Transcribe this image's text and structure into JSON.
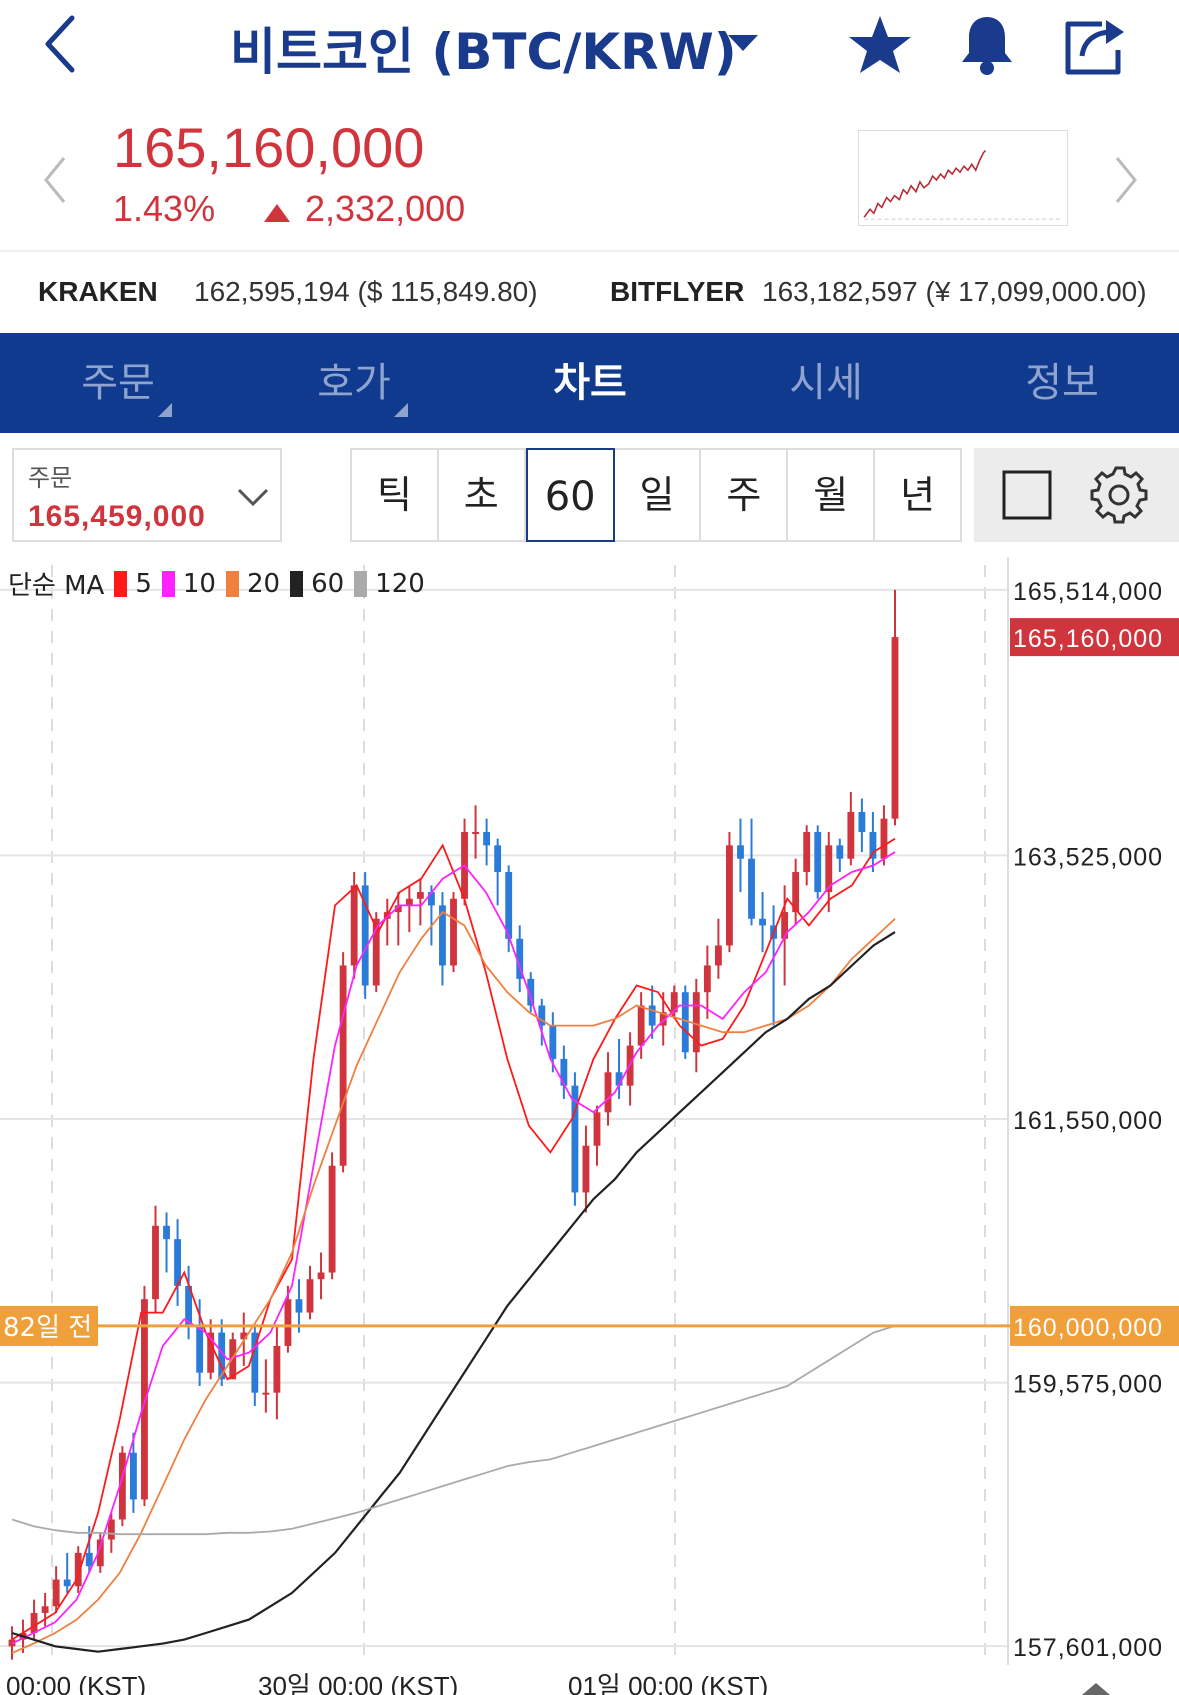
{
  "header": {
    "title": "비트코인 (BTC/KRW)"
  },
  "price": {
    "current": "165,160,000",
    "change_pct": "1.43%",
    "change_amt": "2,332,000"
  },
  "exchanges": [
    {
      "name": "KRAKEN",
      "value": "162,595,194 ($ 115,849.80)"
    },
    {
      "name": "BITFLYER",
      "value": "163,182,597 (¥ 17,099,000.00)"
    }
  ],
  "tabs": [
    {
      "label": "주문",
      "active": false,
      "has_submenu": true
    },
    {
      "label": "호가",
      "active": false,
      "has_submenu": true
    },
    {
      "label": "차트",
      "active": true,
      "has_submenu": false
    },
    {
      "label": "시세",
      "active": false,
      "has_submenu": false
    },
    {
      "label": "정보",
      "active": false,
      "has_submenu": false
    }
  ],
  "order": {
    "label": "주문",
    "value": "165,459,000"
  },
  "periods": [
    {
      "label": "틱",
      "active": false
    },
    {
      "label": "초",
      "active": false
    },
    {
      "label": "60분",
      "active": true
    },
    {
      "label": "일",
      "active": false
    },
    {
      "label": "주",
      "active": false
    },
    {
      "label": "월",
      "active": false
    },
    {
      "label": "년",
      "active": false
    }
  ],
  "colors": {
    "brand": "#1a3a8c",
    "tab_bar": "#0f3a8d",
    "up": "#d0343d",
    "down": "#2b7bd8",
    "marker": "#f0a03a"
  },
  "chart_data": {
    "type": "candlestick",
    "interval": "60분",
    "legend": {
      "label": "단순 MA",
      "items": [
        {
          "name": "5",
          "color": "#ff1a1a"
        },
        {
          "name": "10",
          "color": "#ff22ff"
        },
        {
          "name": "20",
          "color": "#f08040"
        },
        {
          "name": "60",
          "color": "#222222"
        },
        {
          "name": "120",
          "color": "#aaaaaa"
        }
      ]
    },
    "y_axis": {
      "ticks": [
        "165,514,000",
        "163,525,000",
        "161,550,000",
        "159,575,000",
        "157,601,000"
      ],
      "tick_values": [
        165514000,
        163525000,
        161550000,
        159575000,
        157601000
      ],
      "range": [
        157460000,
        165700000
      ]
    },
    "current_price_label": "165,160,000",
    "current_price": 165160000,
    "horizontal_line": {
      "label": "82일 전",
      "price_label": "160,000,000",
      "value": 160000000
    },
    "x_axis": {
      "labels": [
        "00:00 (KST)",
        "30일 00:00 (KST)",
        "01일 00:00 (KST)"
      ]
    },
    "candles": [
      [
        157600000,
        157750000,
        157500000,
        157650000
      ],
      [
        157650000,
        157800000,
        157550000,
        157700000
      ],
      [
        157700000,
        157950000,
        157650000,
        157850000
      ],
      [
        157850000,
        158000000,
        157750000,
        157900000
      ],
      [
        157900000,
        158200000,
        157850000,
        158100000
      ],
      [
        158100000,
        158300000,
        158000000,
        158050000
      ],
      [
        158050000,
        158350000,
        158000000,
        158300000
      ],
      [
        158300000,
        158500000,
        158150000,
        158200000
      ],
      [
        158200000,
        158450000,
        158150000,
        158400000
      ],
      [
        158400000,
        158600000,
        158300000,
        158550000
      ],
      [
        158550000,
        159100000,
        158500000,
        159050000
      ],
      [
        159050000,
        159200000,
        158600000,
        158700000
      ],
      [
        158700000,
        160300000,
        158650000,
        160200000
      ],
      [
        160200000,
        160900000,
        160100000,
        160750000
      ],
      [
        160750000,
        160850000,
        160400000,
        160650000
      ],
      [
        160650000,
        160800000,
        160150000,
        160300000
      ],
      [
        160300000,
        160450000,
        159900000,
        160000000
      ],
      [
        160000000,
        160200000,
        159550000,
        159650000
      ],
      [
        159650000,
        160050000,
        159600000,
        159950000
      ],
      [
        159950000,
        160050000,
        159550000,
        159600000
      ],
      [
        159600000,
        159950000,
        159600000,
        159900000
      ],
      [
        159900000,
        160100000,
        159700000,
        159950000
      ],
      [
        159950000,
        160000000,
        159400000,
        159500000
      ],
      [
        159500000,
        159750000,
        159350000,
        159500000
      ],
      [
        159500000,
        160000000,
        159300000,
        159850000
      ],
      [
        159850000,
        160300000,
        159800000,
        160200000
      ],
      [
        160200000,
        160350000,
        159950000,
        160100000
      ],
      [
        160100000,
        160450000,
        160050000,
        160350000
      ],
      [
        160350000,
        160550000,
        160200000,
        160400000
      ],
      [
        160400000,
        161300000,
        160350000,
        161200000
      ],
      [
        161200000,
        162800000,
        161150000,
        162700000
      ],
      [
        162700000,
        163400000,
        162600000,
        163300000
      ],
      [
        163300000,
        163400000,
        162450000,
        162550000
      ],
      [
        162550000,
        163100000,
        162500000,
        163050000
      ],
      [
        163050000,
        163200000,
        162850000,
        163100000
      ],
      [
        163100000,
        163250000,
        162850000,
        163150000
      ],
      [
        163150000,
        163300000,
        162950000,
        163200000
      ],
      [
        163200000,
        163350000,
        163000000,
        163250000
      ],
      [
        163250000,
        163300000,
        162850000,
        163150000
      ],
      [
        163150000,
        163250000,
        162550000,
        162700000
      ],
      [
        162700000,
        163250000,
        162650000,
        163200000
      ],
      [
        163200000,
        163800000,
        163150000,
        163700000
      ],
      [
        163700000,
        163900000,
        163500000,
        163700000
      ],
      [
        163700000,
        163800000,
        163450000,
        163600000
      ],
      [
        163600000,
        163650000,
        163150000,
        163400000
      ],
      [
        163400000,
        163450000,
        162800000,
        162900000
      ],
      [
        162900000,
        163000000,
        162500000,
        162600000
      ],
      [
        162600000,
        162650000,
        162350000,
        162400000
      ],
      [
        162400000,
        162450000,
        162100000,
        162250000
      ],
      [
        162250000,
        162350000,
        161900000,
        162000000
      ],
      [
        162000000,
        162100000,
        161700000,
        161800000
      ],
      [
        161800000,
        161900000,
        160900000,
        161000000
      ],
      [
        161000000,
        161500000,
        160850000,
        161350000
      ],
      [
        161350000,
        161650000,
        161200000,
        161600000
      ],
      [
        161600000,
        162050000,
        161500000,
        161900000
      ],
      [
        161900000,
        162150000,
        161700000,
        161800000
      ],
      [
        161800000,
        162200000,
        161650000,
        162100000
      ],
      [
        162100000,
        162500000,
        162000000,
        162400000
      ],
      [
        162400000,
        162550000,
        162150000,
        162250000
      ],
      [
        162250000,
        162500000,
        162100000,
        162350000
      ],
      [
        162350000,
        162550000,
        162300000,
        162500000
      ],
      [
        162500000,
        162550000,
        162000000,
        162050000
      ],
      [
        162050000,
        162600000,
        161900000,
        162500000
      ],
      [
        162500000,
        162850000,
        162300000,
        162700000
      ],
      [
        162700000,
        163050000,
        162600000,
        162850000
      ],
      [
        162850000,
        163700000,
        162800000,
        163600000
      ],
      [
        163600000,
        163800000,
        163250000,
        163500000
      ],
      [
        163500000,
        163800000,
        163000000,
        163050000
      ],
      [
        163050000,
        163250000,
        162800000,
        163000000
      ],
      [
        163000000,
        163150000,
        162250000,
        162900000
      ],
      [
        162900000,
        163300000,
        162550000,
        163100000
      ],
      [
        163100000,
        163500000,
        163000000,
        163400000
      ],
      [
        163400000,
        163750000,
        163300000,
        163700000
      ],
      [
        163700000,
        163750000,
        163200000,
        163250000
      ],
      [
        163250000,
        163700000,
        163100000,
        163600000
      ],
      [
        163600000,
        163650000,
        163400000,
        163500000
      ],
      [
        163500000,
        164000000,
        163450000,
        163850000
      ],
      [
        163850000,
        163950000,
        163550000,
        163700000
      ],
      [
        163700000,
        163850000,
        163400000,
        163500000
      ],
      [
        163500000,
        163900000,
        163450000,
        163800000
      ],
      [
        163800000,
        165514000,
        163750000,
        165160000
      ]
    ],
    "ma": {
      "5": [
        157650,
        157750,
        157850,
        158100,
        158600,
        159300,
        160100,
        160100,
        160400,
        159950,
        159600,
        159700,
        160200,
        160500,
        162000,
        163150,
        163300,
        162950,
        163250,
        163350,
        163600,
        163200,
        162650,
        162000,
        161500,
        161300,
        161550,
        162000,
        162300,
        162550,
        162500,
        162250,
        162100,
        162150,
        162400,
        162800,
        163200,
        163000,
        163200,
        163300,
        163550,
        163650
      ],
      "10": [
        157620,
        157700,
        157780,
        157950,
        158300,
        158800,
        159350,
        159850,
        160050,
        159950,
        159750,
        159800,
        159950,
        160300,
        161200,
        162100,
        162700,
        163000,
        163150,
        163150,
        163350,
        163450,
        163250,
        162950,
        162500,
        162000,
        161700,
        161600,
        161750,
        162050,
        162250,
        162400,
        162400,
        162300,
        162500,
        162650,
        162950,
        163100,
        163300,
        163400,
        163450,
        163550
      ],
      "20": [
        157550,
        157620,
        157700,
        157800,
        157950,
        158150,
        158450,
        158800,
        159150,
        159450,
        159700,
        159950,
        160200,
        160550,
        161050,
        161500,
        161950,
        162300,
        162650,
        162900,
        163100,
        163000,
        162700,
        162500,
        162350,
        162250,
        162250,
        162250,
        162300,
        162400,
        162350,
        162300,
        162250,
        162200,
        162200,
        162250,
        162300,
        162400,
        162550,
        162750,
        162900,
        163050
      ],
      "60": [
        157700,
        157650,
        157600,
        157580,
        157560,
        157580,
        157600,
        157620,
        157650,
        157700,
        157750,
        157800,
        157900,
        158000,
        158150,
        158300,
        158500,
        158700,
        158900,
        159150,
        159400,
        159650,
        159900,
        160150,
        160350,
        160550,
        160750,
        160950,
        161100,
        161300,
        161450,
        161600,
        161750,
        161900,
        162050,
        162200,
        162300,
        162450,
        162550,
        162700,
        162850,
        162950
      ],
      "120": [
        158550,
        158500,
        158470,
        158450,
        158450,
        158440,
        158440,
        158440,
        158440,
        158440,
        158450,
        158450,
        158460,
        158480,
        158520,
        158560,
        158600,
        158650,
        158700,
        158750,
        158800,
        158850,
        158900,
        158950,
        158980,
        159000,
        159050,
        159100,
        159150,
        159200,
        159250,
        159300,
        159350,
        159400,
        159450,
        159500,
        159550,
        159650,
        159750,
        159850,
        159950,
        160000
      ]
    }
  }
}
